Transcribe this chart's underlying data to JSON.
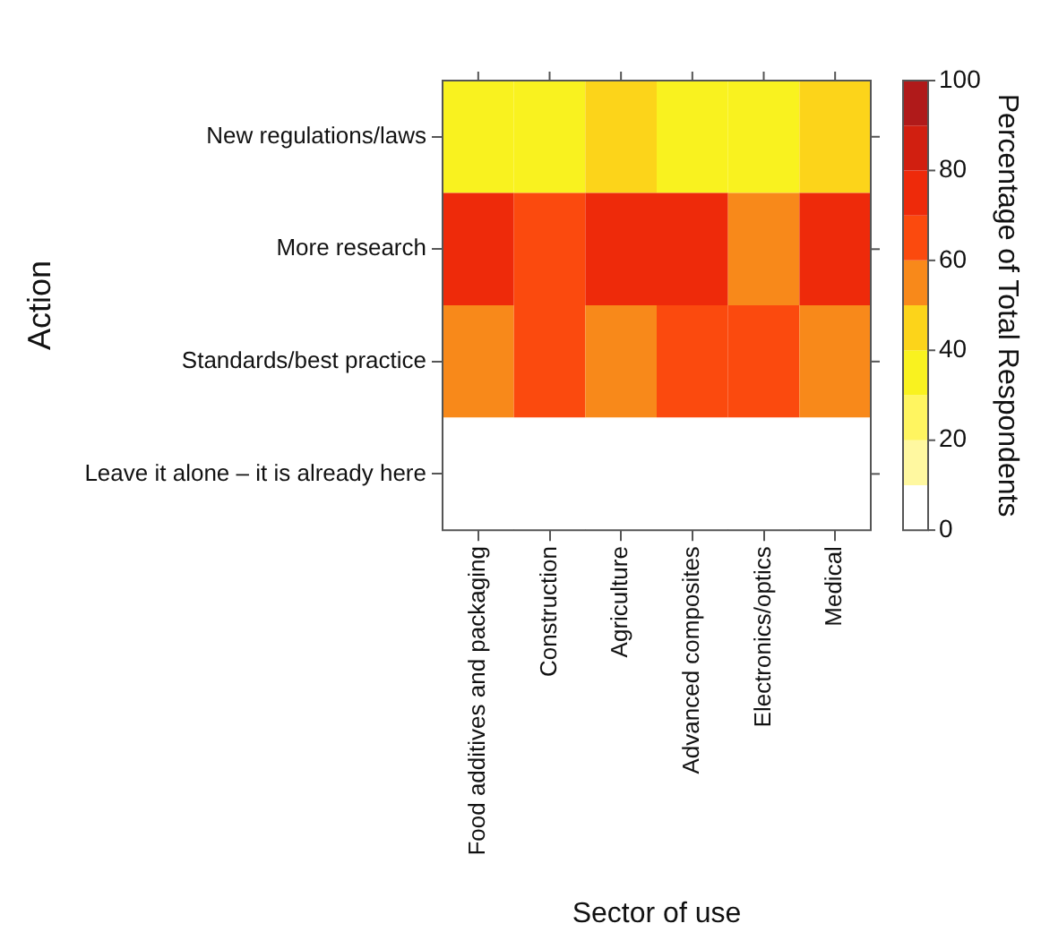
{
  "chart_data": {
    "type": "heatmap",
    "xlabel": "Sector of use",
    "ylabel": "Action",
    "clabel": "Percentage of Total Respondents",
    "categories": [
      "Food additives and packaging",
      "Construction",
      "Agriculture",
      "Advanced composites",
      "Electronics/optics",
      "Medical"
    ],
    "y_categories": [
      "New regulations/laws",
      "More research",
      "Standards/best practice",
      "Leave it alone – it is already here"
    ],
    "cells": [
      [
        35,
        35,
        45,
        35,
        35,
        45
      ],
      [
        75,
        65,
        75,
        75,
        55,
        75
      ],
      [
        55,
        65,
        55,
        65,
        65,
        55
      ],
      [
        0,
        0,
        0,
        0,
        0,
        0
      ]
    ],
    "clim": [
      0,
      100
    ],
    "cticks": [
      0,
      20,
      40,
      60,
      80,
      100
    ]
  }
}
